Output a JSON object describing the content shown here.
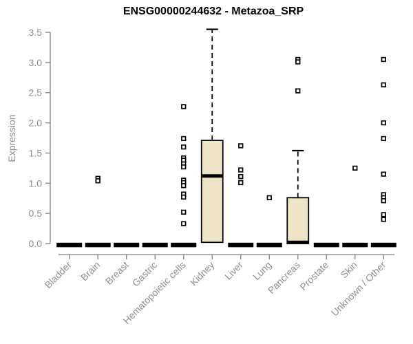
{
  "title": "ENSG00000244632 - Metazoa_SRP",
  "y_axis": {
    "label": "Expression",
    "tick_labels": [
      "0.0",
      "0.5",
      "1.0",
      "1.5",
      "2.0",
      "2.5",
      "3.0",
      "3.5"
    ]
  },
  "colors": {
    "box_fill": "#EEE5C9",
    "box_border": "#000000",
    "axis": "#808080",
    "tick_text": "#8f8f8f",
    "title_text": "#000000",
    "background": "#ffffff"
  },
  "chart_data": {
    "type": "boxplot",
    "title": "ENSG00000244632 - Metazoa_SRP",
    "xlabel": "",
    "ylabel": "Expression",
    "ylim": [
      0,
      3.5
    ],
    "yticks": [
      0,
      0.5,
      1,
      1.5,
      2,
      2.5,
      3,
      3.5
    ],
    "grid": false,
    "legend": "none",
    "categories": [
      "Bladder",
      "Brain",
      "Breast",
      "Gastric",
      "Hematopoietic cells",
      "Kidney",
      "Liver",
      "Lung",
      "Pancreas",
      "Prostate",
      "Skin",
      "Unknown / Other"
    ],
    "series": [
      {
        "name": "Bladder",
        "whisker_low": 0,
        "q1": 0,
        "median": 0,
        "q3": 0,
        "whisker_high": 0,
        "outliers": []
      },
      {
        "name": "Brain",
        "whisker_low": 0,
        "q1": 0,
        "median": 0,
        "q3": 0,
        "whisker_high": 0,
        "outliers": [
          1.08,
          1.04
        ]
      },
      {
        "name": "Breast",
        "whisker_low": 0,
        "q1": 0,
        "median": 0,
        "q3": 0,
        "whisker_high": 0,
        "outliers": []
      },
      {
        "name": "Gastric",
        "whisker_low": 0,
        "q1": 0,
        "median": 0,
        "q3": 0,
        "whisker_high": 0,
        "outliers": []
      },
      {
        "name": "Hematopoietic cells",
        "whisker_low": 0,
        "q1": 0,
        "median": 0,
        "q3": 0,
        "whisker_high": 0,
        "outliers": [
          2.27,
          1.74,
          1.6,
          1.42,
          1.38,
          1.32,
          1.27,
          1.05,
          1.01,
          0.96,
          0.82,
          0.77,
          0.52,
          0.33
        ]
      },
      {
        "name": "Kidney",
        "whisker_low": 0,
        "q1": 0.02,
        "median": 1.12,
        "q3": 1.71,
        "whisker_high": 3.55,
        "outliers": []
      },
      {
        "name": "Liver",
        "whisker_low": 0,
        "q1": 0,
        "median": 0,
        "q3": 0,
        "whisker_high": 0,
        "outliers": [
          1.62,
          1.22,
          1.11,
          1.01
        ]
      },
      {
        "name": "Lung",
        "whisker_low": 0,
        "q1": 0,
        "median": 0,
        "q3": 0,
        "whisker_high": 0,
        "outliers": [
          0.76
        ]
      },
      {
        "name": "Pancreas",
        "whisker_low": 0,
        "q1": 0,
        "median": 0.02,
        "q3": 0.76,
        "whisker_high": 1.54,
        "outliers": [
          3.05,
          3.01,
          2.53
        ]
      },
      {
        "name": "Prostate",
        "whisker_low": 0,
        "q1": 0,
        "median": 0,
        "q3": 0,
        "whisker_high": 0,
        "outliers": []
      },
      {
        "name": "Skin",
        "whisker_low": 0,
        "q1": 0,
        "median": 0,
        "q3": 0,
        "whisker_high": 0,
        "outliers": [
          1.25
        ]
      },
      {
        "name": "Unknown / Other",
        "whisker_low": 0,
        "q1": 0,
        "median": 0,
        "q3": 0,
        "whisker_high": 0,
        "outliers": [
          3.05,
          2.63,
          2.0,
          1.74,
          1.15,
          0.81,
          0.76,
          0.71,
          0.48,
          0.4
        ]
      }
    ]
  }
}
